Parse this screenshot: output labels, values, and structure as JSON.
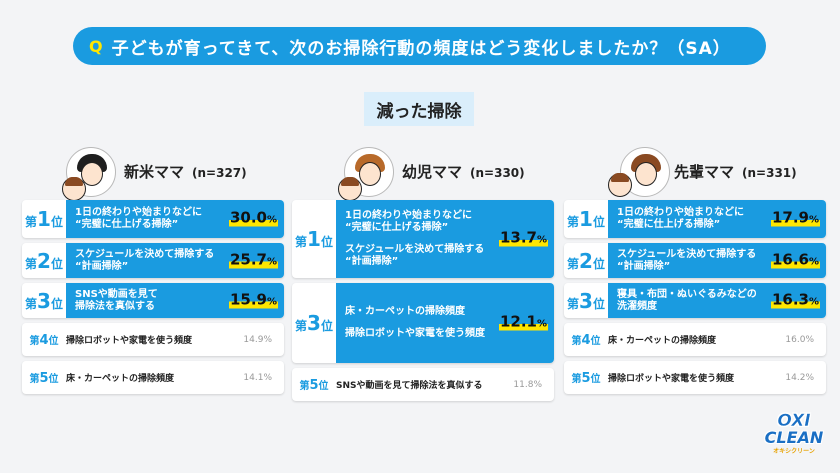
{
  "question": {
    "mark": "Q",
    "text": "子どもが育ってきて、次のお掃除行動の頻度はどう変化しましたか？（SA）"
  },
  "section_title": "減った掃除",
  "columns": [
    {
      "name": "新米ママ",
      "n": "(n=327)",
      "ranks": [
        {
          "rank": "1",
          "pos": "位",
          "prefix": "第",
          "items": [
            [
              "1日の終わりや始まりなどに",
              "“完璧に仕上げる掃除”"
            ]
          ],
          "pct": "30.0",
          "unit": "%"
        },
        {
          "rank": "2",
          "pos": "位",
          "prefix": "第",
          "items": [
            [
              "スケジュールを決めて掃除する",
              "“計画掃除”"
            ]
          ],
          "pct": "25.7",
          "unit": "%"
        },
        {
          "rank": "3",
          "pos": "位",
          "prefix": "第",
          "items": [
            [
              "SNSや動画を見て",
              "掃除法を真似する"
            ]
          ],
          "pct": "15.9",
          "unit": "%"
        },
        {
          "rank": "4",
          "pos": "位",
          "prefix": "第",
          "label": "掃除ロボットや家電を使う頻度",
          "pct": "14.9%"
        },
        {
          "rank": "5",
          "pos": "位",
          "prefix": "第",
          "label": "床・カーペットの掃除頻度",
          "pct": "14.1%"
        }
      ]
    },
    {
      "name": "幼児ママ",
      "n": "(n=330)",
      "ranks": [
        {
          "rank": "1",
          "pos": "位",
          "prefix": "第",
          "items": [
            [
              "1日の終わりや始まりなどに",
              "“完璧に仕上げる掃除”"
            ],
            [
              "スケジュールを決めて掃除する",
              "“計画掃除”"
            ]
          ],
          "pct": "13.7",
          "unit": "%"
        },
        {
          "rank": "3",
          "pos": "位",
          "prefix": "第",
          "items": [
            [
              "床・カーペットの掃除頻度"
            ],
            [
              "掃除ロボットや家電を使う頻度"
            ]
          ],
          "pct": "12.1",
          "unit": "%"
        },
        {
          "rank": "5",
          "pos": "位",
          "prefix": "第",
          "label": "SNSや動画を見て掃除法を真似する",
          "pct": "11.8%"
        }
      ]
    },
    {
      "name": "先輩ママ",
      "n": "(n=331)",
      "ranks": [
        {
          "rank": "1",
          "pos": "位",
          "prefix": "第",
          "items": [
            [
              "1日の終わりや始まりなどに",
              "“完璧に仕上げる掃除”"
            ]
          ],
          "pct": "17.9",
          "unit": "%"
        },
        {
          "rank": "2",
          "pos": "位",
          "prefix": "第",
          "items": [
            [
              "スケジュールを決めて掃除する",
              "“計画掃除”"
            ]
          ],
          "pct": "16.6",
          "unit": "%"
        },
        {
          "rank": "3",
          "pos": "位",
          "prefix": "第",
          "items": [
            [
              "寝具・布団・ぬいぐるみなどの",
              "洗濯頻度"
            ]
          ],
          "pct": "16.3",
          "unit": "%"
        },
        {
          "rank": "4",
          "pos": "位",
          "prefix": "第",
          "label": "床・カーペットの掃除頻度",
          "pct": "16.0%"
        },
        {
          "rank": "5",
          "pos": "位",
          "prefix": "第",
          "label": "掃除ロボットや家電を使う頻度",
          "pct": "14.2%"
        }
      ]
    }
  ],
  "logo": {
    "line1": "OXI",
    "line2": "CLEAN",
    "line3": "オキシクリーン"
  },
  "colors": {
    "accent": "#1a9be0",
    "highlight": "#ffe600",
    "hair": [
      "#1f1f1f",
      "#b86a2a",
      "#8a4a22"
    ]
  }
}
